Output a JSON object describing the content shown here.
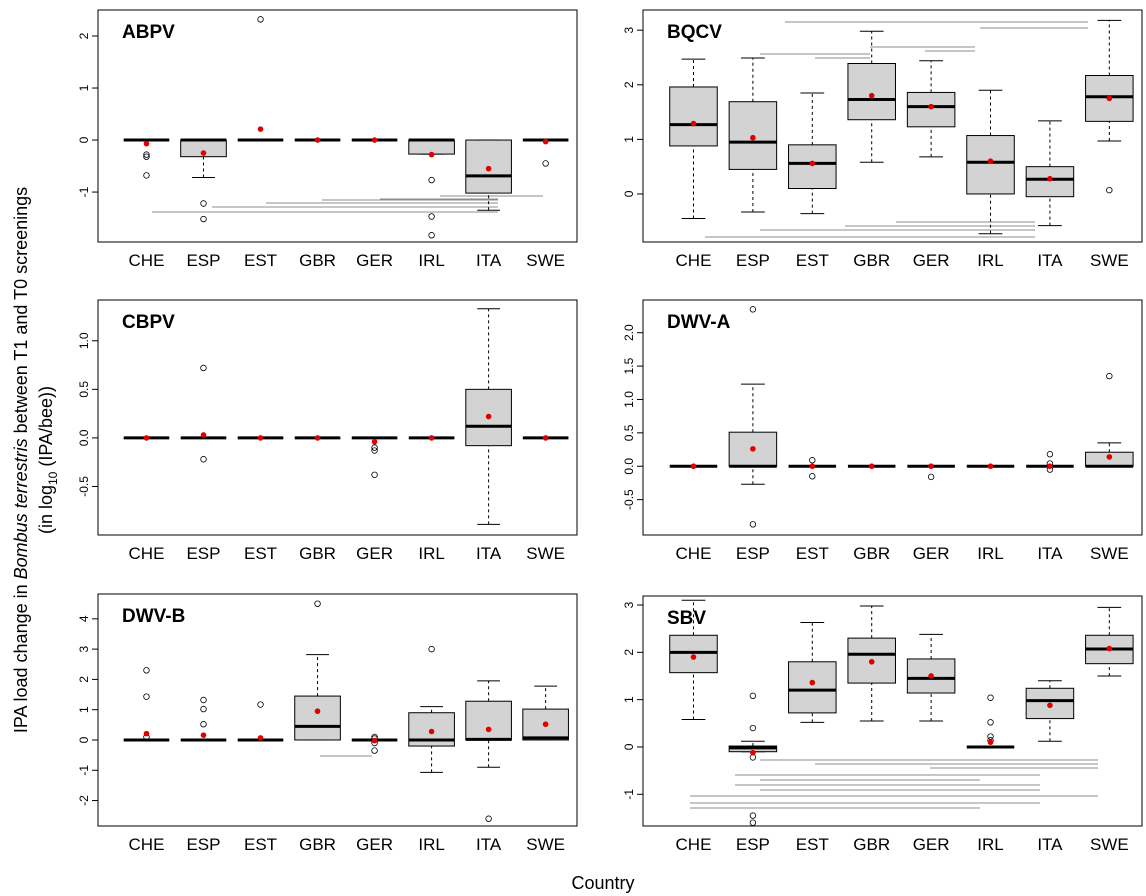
{
  "ylabel": [
    "IPA load change in ",
    "Bombus terrestris",
    " between T1 and T0 screenings"
  ],
  "ylabel2": [
    "(in log",
    "10",
    " (IPA/bee))"
  ],
  "xlabel": "Country",
  "chart_data": [
    {
      "type": "box",
      "title": "ABPV",
      "categories": [
        "CHE",
        "ESP",
        "EST",
        "GBR",
        "GER",
        "IRL",
        "ITA",
        "SWE"
      ],
      "boxes": [
        [
          0,
          0,
          0,
          0,
          0
        ],
        [
          -0.72,
          -0.32,
          0,
          0,
          0
        ],
        [
          0,
          0,
          0,
          0,
          0
        ],
        [
          0,
          0,
          0,
          0,
          0
        ],
        [
          0,
          0,
          0,
          0,
          0
        ],
        [
          -0.27,
          -0.27,
          0,
          0,
          0
        ],
        [
          -1.35,
          -1.02,
          -0.69,
          0,
          0
        ],
        [
          0,
          0,
          0,
          0,
          0
        ]
      ],
      "means": [
        -0.07,
        -0.25,
        0.21,
        0,
        0,
        -0.28,
        -0.55,
        -0.03
      ],
      "outliers": [
        [
          -0.28,
          -0.32,
          -0.68
        ],
        [
          -1.22,
          -1.52
        ],
        [
          2.32
        ],
        [],
        [],
        [
          -0.77,
          -1.47,
          -1.83
        ],
        [],
        [
          -0.45
        ]
      ],
      "ylim": [
        -1.96,
        2.5
      ],
      "yticks": [
        -1,
        0,
        1,
        2
      ]
    },
    {
      "type": "box",
      "title": "BQCV",
      "categories": [
        "CHE",
        "ESP",
        "EST",
        "GBR",
        "GER",
        "IRL",
        "ITA",
        "SWE"
      ],
      "boxes": [
        [
          -0.45,
          0.88,
          1.27,
          1.96,
          2.47
        ],
        [
          -0.33,
          0.45,
          0.95,
          1.69,
          2.49
        ],
        [
          -0.36,
          0.1,
          0.56,
          0.9,
          1.85
        ],
        [
          0.58,
          1.36,
          1.73,
          2.39,
          2.98
        ],
        [
          0.68,
          1.23,
          1.6,
          1.86,
          2.44
        ],
        [
          -0.73,
          0,
          0.58,
          1.07,
          1.9
        ],
        [
          -0.58,
          -0.05,
          0.27,
          0.5,
          1.34
        ],
        [
          0.97,
          1.33,
          1.78,
          2.17,
          3.18
        ]
      ],
      "means": [
        1.29,
        1.03,
        0.56,
        1.8,
        1.6,
        0.6,
        0.28,
        1.75
      ],
      "outliers": [
        [],
        [],
        [],
        [],
        [],
        [],
        [],
        [
          0.07
        ]
      ],
      "ylim": [
        -0.88,
        3.37
      ],
      "yticks": [
        0,
        1,
        2,
        3
      ]
    },
    {
      "type": "box",
      "title": "CBPV",
      "categories": [
        "CHE",
        "ESP",
        "EST",
        "GBR",
        "GER",
        "IRL",
        "ITA",
        "SWE"
      ],
      "boxes": [
        [
          0,
          0,
          0,
          0,
          0
        ],
        [
          0,
          0,
          0,
          0,
          0
        ],
        [
          0,
          0,
          0,
          0,
          0
        ],
        [
          0,
          0,
          0,
          0,
          0
        ],
        [
          0,
          0,
          0,
          0,
          0
        ],
        [
          0,
          0,
          0,
          0,
          0
        ],
        [
          -0.89,
          -0.08,
          0.12,
          0.5,
          1.33
        ],
        [
          0,
          0,
          0,
          0,
          0
        ]
      ],
      "means": [
        0,
        0.03,
        0,
        0,
        -0.04,
        0,
        0.22,
        0
      ],
      "outliers": [
        [],
        [
          0.72,
          -0.22
        ],
        [],
        [],
        [
          -0.1,
          -0.13,
          -0.38
        ],
        [],
        [],
        []
      ],
      "ylim": [
        -1.0,
        1.42
      ],
      "yticks": [
        -0.5,
        {
          "value": 0,
          "label": "0.0"
        },
        0.5,
        {
          "value": 1,
          "label": "1.0"
        }
      ]
    },
    {
      "type": "box",
      "title": "DWV-A",
      "categories": [
        "CHE",
        "ESP",
        "EST",
        "GBR",
        "GER",
        "IRL",
        "ITA",
        "SWE"
      ],
      "boxes": [
        [
          0,
          0,
          0,
          0,
          0
        ],
        [
          -0.27,
          0,
          0,
          0.51,
          1.23
        ],
        [
          0,
          0,
          0,
          0,
          0
        ],
        [
          0,
          0,
          0,
          0,
          0
        ],
        [
          0,
          0,
          0,
          0,
          0
        ],
        [
          0,
          0,
          0,
          0,
          0
        ],
        [
          0,
          0,
          0,
          0,
          0
        ],
        [
          0,
          0,
          0,
          0.21,
          0.35
        ]
      ],
      "means": [
        0,
        0.26,
        0,
        0,
        0,
        0,
        0,
        0.14
      ],
      "outliers": [
        [],
        [
          2.35,
          -0.87
        ],
        [
          0.09,
          -0.15
        ],
        [],
        [
          -0.16
        ],
        [],
        [
          0.18,
          0.04,
          -0.05
        ],
        [
          1.35
        ]
      ],
      "ylim": [
        -1.03,
        2.49
      ],
      "yticks": [
        -0.5,
        {
          "value": 0,
          "label": "0.0"
        },
        0.5,
        {
          "value": 1,
          "label": "1.0"
        },
        1.5,
        {
          "value": 2,
          "label": "2.0"
        }
      ]
    },
    {
      "type": "box",
      "title": "DWV-B",
      "categories": [
        "CHE",
        "ESP",
        "EST",
        "GBR",
        "GER",
        "IRL",
        "ITA",
        "SWE"
      ],
      "boxes": [
        [
          0,
          0,
          0,
          0,
          0
        ],
        [
          0,
          0,
          0,
          0,
          0
        ],
        [
          0,
          0,
          0,
          0,
          0
        ],
        [
          0,
          0,
          0.45,
          1.45,
          2.82
        ],
        [
          0,
          0,
          0,
          0,
          0
        ],
        [
          -1.07,
          -0.2,
          0,
          0.9,
          1.1
        ],
        [
          -0.9,
          0,
          0.02,
          1.28,
          1.95
        ],
        [
          0,
          0,
          0.07,
          1.02,
          1.78
        ]
      ],
      "means": [
        0.21,
        0.16,
        0.07,
        0.95,
        -0.02,
        0.28,
        0.35,
        0.52
      ],
      "outliers": [
        [
          2.3,
          1.43,
          0.1
        ],
        [
          1.32,
          1.02,
          0.52
        ],
        [
          1.17
        ],
        [
          4.5
        ],
        [
          0.1,
          0.05,
          -0.1,
          -0.35
        ],
        [
          3.0
        ],
        [
          -2.6
        ],
        []
      ],
      "ylim": [
        -2.84,
        4.82
      ],
      "yticks": [
        -2,
        -1,
        0,
        1,
        2,
        3,
        4
      ]
    },
    {
      "type": "box",
      "title": "SBV",
      "categories": [
        "CHE",
        "ESP",
        "EST",
        "GBR",
        "GER",
        "IRL",
        "ITA",
        "SWE"
      ],
      "boxes": [
        [
          0.58,
          1.57,
          2.0,
          2.36,
          3.1
        ],
        [
          -0.1,
          -0.1,
          -0.02,
          0.02,
          0.12
        ],
        [
          0.52,
          0.72,
          1.2,
          1.8,
          2.63
        ],
        [
          0.55,
          1.35,
          1.96,
          2.3,
          2.98
        ],
        [
          0.55,
          1.14,
          1.45,
          1.86,
          2.38
        ],
        [
          0,
          0,
          0,
          0,
          0
        ],
        [
          0.12,
          0.6,
          0.98,
          1.24,
          1.4
        ],
        [
          1.5,
          1.76,
          2.07,
          2.36,
          2.95
        ]
      ],
      "means": [
        1.9,
        -0.12,
        1.36,
        1.8,
        1.5,
        0.1,
        0.88,
        2.08
      ],
      "outliers": [
        [],
        [
          1.08,
          0.4,
          -0.22,
          -1.45,
          -1.6
        ],
        [],
        [],
        [],
        [
          1.04,
          0.52,
          0.22,
          0.14
        ],
        [],
        []
      ],
      "ylim": [
        -1.67,
        3.19
      ],
      "yticks": [
        -1,
        0,
        1,
        2,
        3
      ]
    }
  ]
}
